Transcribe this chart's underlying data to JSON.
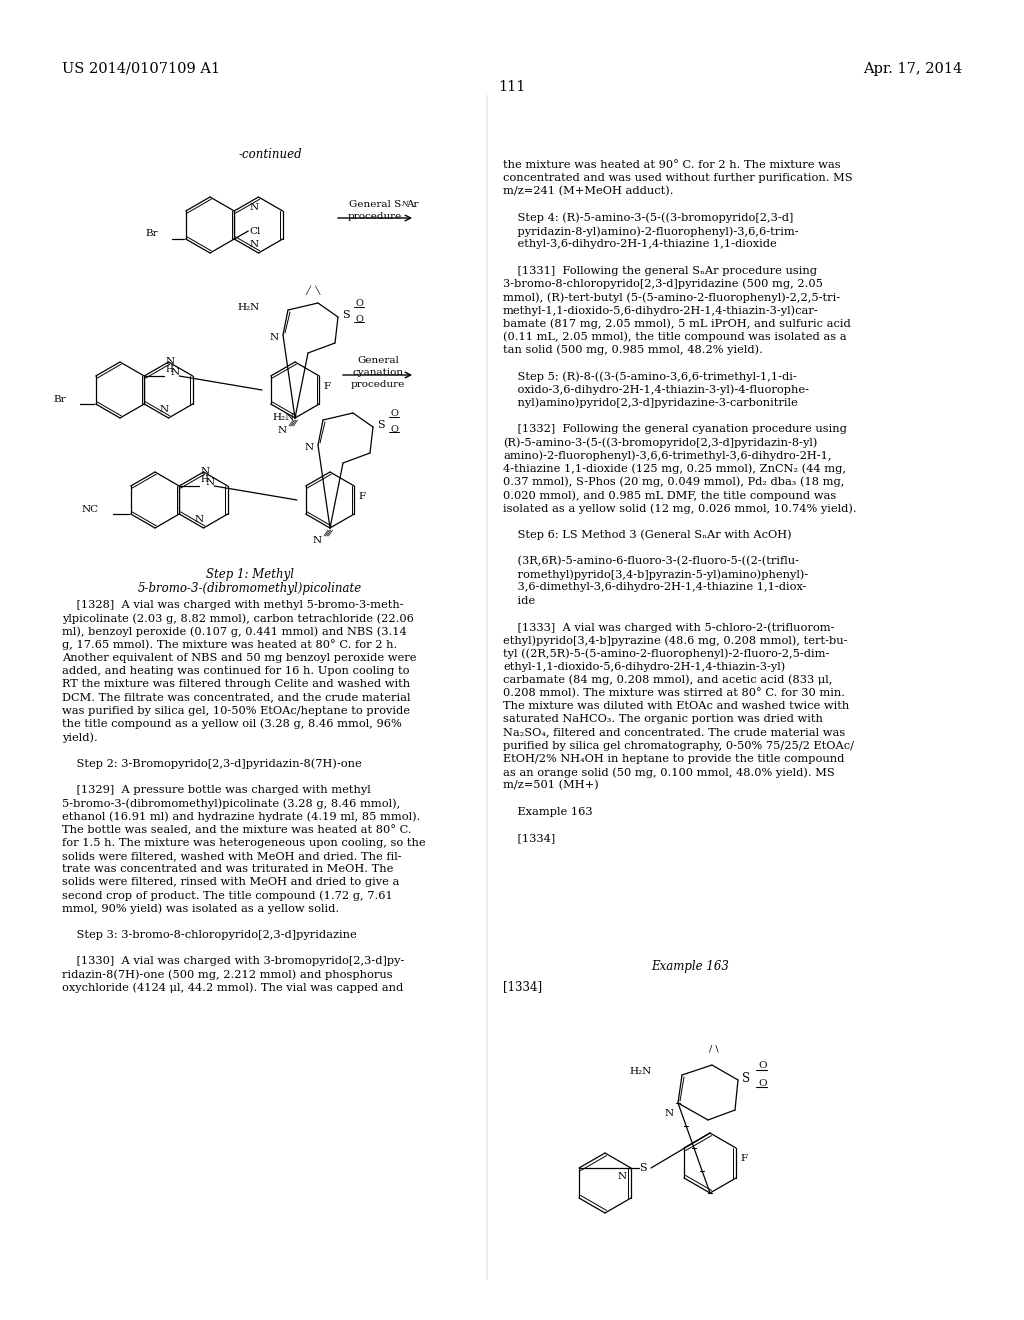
{
  "header_left": "US 2014/0107109 A1",
  "header_right": "Apr. 17, 2014",
  "page_number": "111",
  "bg_color": "#ffffff",
  "text_color": "#000000",
  "right_text": [
    "the mixture was heated at 90° C. for 2 h. The mixture was",
    "concentrated and was used without further purification. MS",
    "m/z=241 (M+MeOH adduct).",
    "",
    "    Step 4: (R)-5-amino-3-(5-((3-bromopyrido[2,3-d]",
    "    pyridazin-8-yl)amino)-2-fluorophenyl)-3,6,6-trim-",
    "    ethyl-3,6-dihydro-2H-1,4-thiazine 1,1-dioxide",
    "",
    "    [1331]  Following the general SₙAr procedure using",
    "3-bromo-8-chloropyrido[2,3-d]pyridazine (500 mg, 2.05",
    "mmol), (R)-tert-butyl (5-(5-amino-2-fluorophenyl)-2,2,5-tri-",
    "methyl-1,1-dioxido-5,6-dihydro-2H-1,4-thiazin-3-yl)car-",
    "bamate (817 mg, 2.05 mmol), 5 mL iPrOH, and sulfuric acid",
    "(0.11 mL, 2.05 mmol), the title compound was isolated as a",
    "tan solid (500 mg, 0.985 mmol, 48.2% yield).",
    "",
    "    Step 5: (R)-8-((3-(5-amino-3,6,6-trimethyl-1,1-di-",
    "    oxido-3,6-dihydro-2H-1,4-thiazin-3-yl)-4-fluorophe-",
    "    nyl)amino)pyrido[2,3-d]pyridazine-3-carbonitrile",
    "",
    "    [1332]  Following the general cyanation procedure using",
    "(R)-5-amino-3-(5-((3-bromopyrido[2,3-d]pyridazin-8-yl)",
    "amino)-2-fluorophenyl)-3,6,6-trimethyl-3,6-dihydro-2H-1,",
    "4-thiazine 1,1-dioxide (125 mg, 0.25 mmol), ZnCN₂ (44 mg,",
    "0.37 mmol), S-Phos (20 mg, 0.049 mmol), Pd₂ dba₃ (18 mg,",
    "0.020 mmol), and 0.985 mL DMF, the title compound was",
    "isolated as a yellow solid (12 mg, 0.026 mmol, 10.74% yield).",
    "",
    "    Step 6: LS Method 3 (General SₙAr with AcOH)",
    "",
    "    (3R,6R)-5-amino-6-fluoro-3-(2-fluoro-5-((2-(triflu-",
    "    romethyl)pyrido[3,4-b]pyrazin-5-yl)amino)phenyl)-",
    "    3,6-dimethyl-3,6-dihydro-2H-1,4-thiazine 1,1-diox-",
    "    ide",
    "",
    "    [1333]  A vial was charged with 5-chloro-2-(trifluorom-",
    "ethyl)pyrido[3,4-b]pyrazine (48.6 mg, 0.208 mmol), tert-bu-",
    "tyl ((2R,5R)-5-(5-amino-2-fluorophenyl)-2-fluoro-2,5-dim-",
    "ethyl-1,1-dioxido-5,6-dihydro-2H-1,4-thiazin-3-yl)",
    "carbamate (84 mg, 0.208 mmol), and acetic acid (833 μl,",
    "0.208 mmol). The mixture was stirred at 80° C. for 30 min.",
    "The mixture was diluted with EtOAc and washed twice with",
    "saturated NaHCO₃. The organic portion was dried with",
    "Na₂SO₄, filtered and concentrated. The crude material was",
    "purified by silica gel chromatography, 0-50% 75/25/2 EtOAc/",
    "EtOH/2% NH₄OH in heptane to provide the title compound",
    "as an orange solid (50 mg, 0.100 mmol, 48.0% yield). MS",
    "m/z=501 (MH+)",
    "",
    "    Example 163",
    "",
    "    [1334]"
  ],
  "left_paragraphs": [
    "    [1328]  A vial was charged with methyl 5-bromo-3-meth-",
    "ylpicolinate (2.03 g, 8.82 mmol), carbon tetrachloride (22.06",
    "ml), benzoyl peroxide (0.107 g, 0.441 mmol) and NBS (3.14",
    "g, 17.65 mmol). The mixture was heated at 80° C. for 2 h.",
    "Another equivalent of NBS and 50 mg benzoyl peroxide were",
    "added, and heating was continued for 16 h. Upon cooling to",
    "RT the mixture was filtered through Celite and washed with",
    "DCM. The filtrate was concentrated, and the crude material",
    "was purified by silica gel, 10-50% EtOAc/heptane to provide",
    "the title compound as a yellow oil (3.28 g, 8.46 mmol, 96%",
    "yield).",
    "",
    "    Step 2: 3-Bromopyrido[2,3-d]pyridazin-8(7H)-one",
    "",
    "    [1329]  A pressure bottle was charged with methyl",
    "5-bromo-3-(dibromomethyl)picolinate (3.28 g, 8.46 mmol),",
    "ethanol (16.91 ml) and hydrazine hydrate (4.19 ml, 85 mmol).",
    "The bottle was sealed, and the mixture was heated at 80° C.",
    "for 1.5 h. The mixture was heterogeneous upon cooling, so the",
    "solids were filtered, washed with MeOH and dried. The fil-",
    "trate was concentrated and was triturated in MeOH. The",
    "solids were filtered, rinsed with MeOH and dried to give a",
    "second crop of product. The title compound (1.72 g, 7.61",
    "mmol, 90% yield) was isolated as a yellow solid.",
    "",
    "    Step 3: 3-bromo-8-chloropyrido[2,3-d]pyridazine",
    "",
    "    [1330]  A vial was charged with 3-bromopyrido[2,3-d]py-",
    "ridazin-8(7H)-one (500 mg, 2.212 mmol) and phosphorus",
    "oxychloride (4124 μl, 44.2 mmol). The vial was capped and"
  ]
}
